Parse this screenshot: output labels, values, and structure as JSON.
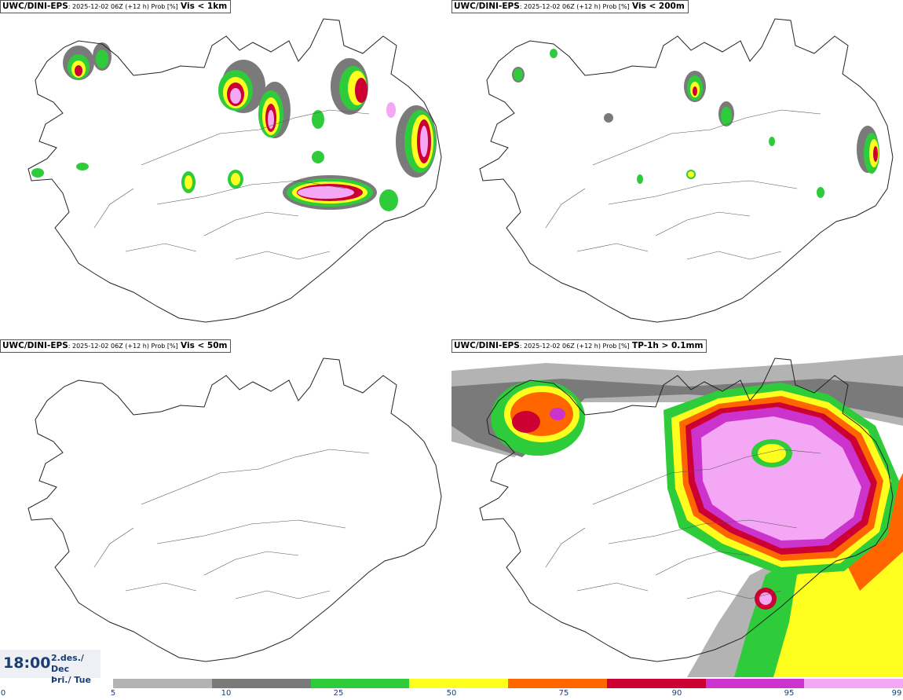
{
  "panels": [
    {
      "model": "UWC/DINI-EPS",
      "run": ": 2025-12-02 06Z (+12 h) Prob [%]",
      "variable": "Vis < 1km"
    },
    {
      "model": "UWC/DINI-EPS",
      "run": ": 2025-12-02 06Z (+12 h) Prob [%]",
      "variable": "Vis < 200m"
    },
    {
      "model": "UWC/DINI-EPS",
      "run": ": 2025-12-02 06Z (+12 h) Prob [%]",
      "variable": "Vis < 50m"
    },
    {
      "model": "UWC/DINI-EPS",
      "run": ": 2025-12-02 06Z (+12 h) Prob [%]",
      "variable": "TP-1h > 0.1mm"
    }
  ],
  "time": {
    "clock": "18:00",
    "date": "2.des./ Dec",
    "weekday": "Þri./ Tue"
  },
  "legend": {
    "ticks": [
      "0",
      "5",
      "10",
      "25",
      "50",
      "75",
      "90",
      "95",
      "99"
    ],
    "colors": [
      "#b3b3b3",
      "#7a7a7a",
      "#2ecc3b",
      "#ffff1f",
      "#ff6600",
      "#cc0033",
      "#cc33cc",
      "#f4a7f4"
    ]
  }
}
